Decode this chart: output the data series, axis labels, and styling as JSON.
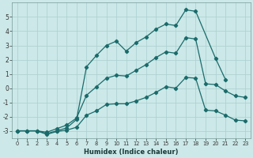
{
  "xlabel": "Humidex (Indice chaleur)",
  "bg_color": "#cce8e8",
  "line_color": "#1a6b6b",
  "grid_color": "#aacfcf",
  "xlim": [
    -0.5,
    23.5
  ],
  "ylim": [
    -3.5,
    6.0
  ],
  "yticks": [
    -3,
    -2,
    -1,
    0,
    1,
    2,
    3,
    4,
    5
  ],
  "xticks": [
    0,
    1,
    2,
    3,
    4,
    5,
    6,
    7,
    8,
    9,
    10,
    11,
    12,
    13,
    14,
    15,
    16,
    17,
    18,
    19,
    20,
    21,
    22,
    23
  ],
  "series": {
    "top": {
      "x": [
        0,
        1,
        2,
        3,
        4,
        5,
        6,
        7,
        8,
        9,
        10,
        11,
        12,
        13,
        14,
        15,
        16,
        17,
        18,
        20,
        21
      ],
      "y": [
        -3.0,
        -3.0,
        -3.0,
        -3.2,
        -3.0,
        -2.8,
        -2.2,
        1.5,
        2.3,
        3.0,
        3.3,
        2.6,
        3.2,
        3.6,
        4.15,
        4.5,
        4.4,
        5.5,
        5.4,
        2.1,
        0.6
      ]
    },
    "middle": {
      "x": [
        0,
        1,
        2,
        3,
        4,
        5,
        6,
        7,
        8,
        9,
        10,
        11,
        12,
        13,
        14,
        15,
        16,
        17,
        18,
        19,
        20,
        21,
        22,
        23
      ],
      "y": [
        -3.0,
        -3.0,
        -3.0,
        -3.1,
        -2.85,
        -2.6,
        -2.1,
        -0.5,
        0.1,
        0.7,
        0.9,
        0.85,
        1.25,
        1.65,
        2.15,
        2.55,
        2.45,
        3.55,
        3.45,
        0.3,
        0.25,
        -0.2,
        -0.55,
        -0.65
      ]
    },
    "bottom": {
      "x": [
        0,
        1,
        2,
        3,
        4,
        5,
        6,
        7,
        8,
        9,
        10,
        11,
        12,
        13,
        14,
        15,
        16,
        17,
        18,
        19,
        20,
        21,
        22,
        23
      ],
      "y": [
        -3.0,
        -3.0,
        -3.0,
        -3.25,
        -3.05,
        -2.95,
        -2.75,
        -1.9,
        -1.6,
        -1.15,
        -1.1,
        -1.1,
        -0.9,
        -0.65,
        -0.3,
        0.1,
        0.0,
        0.75,
        0.7,
        -1.55,
        -1.6,
        -1.9,
        -2.25,
        -2.3
      ]
    }
  }
}
